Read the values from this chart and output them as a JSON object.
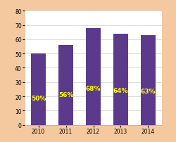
{
  "categories": [
    "2010",
    "2011",
    "2012",
    "2013",
    "2014"
  ],
  "values": [
    50,
    56,
    68,
    64,
    63
  ],
  "bar_color": "#5b3a8c",
  "label_color": "#ffff00",
  "background_color": "#f5c9a0",
  "plot_bg_color": "#ffffff",
  "grid_color": "#cccccc",
  "ylim": [
    0,
    80
  ],
  "yticks": [
    0,
    10,
    20,
    30,
    40,
    50,
    60,
    70,
    80
  ],
  "bar_width": 0.55,
  "label_fontsize": 6.5,
  "tick_fontsize": 5.5
}
